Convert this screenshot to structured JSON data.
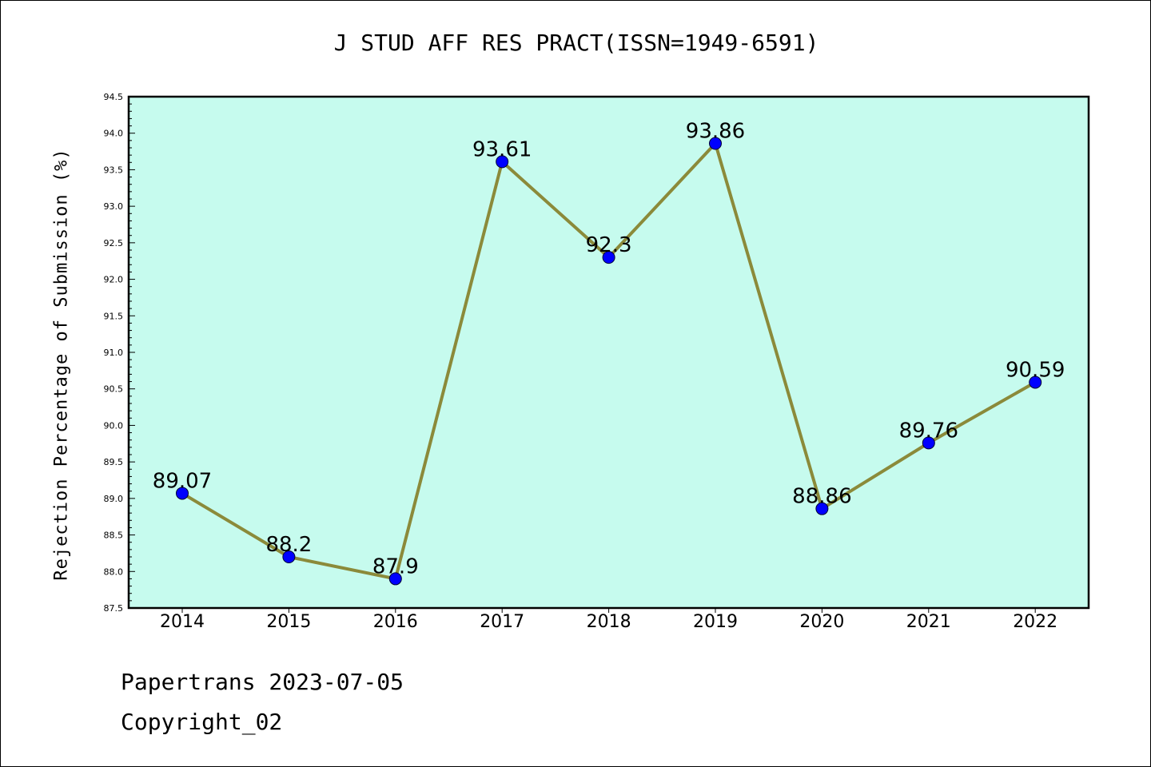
{
  "chart_data": {
    "type": "line",
    "title": "J STUD AFF RES PRACT(ISSN=1949-6591)",
    "xlabel": "",
    "ylabel": "Rejection Percentage of Submission (%)",
    "categories": [
      "2014",
      "2015",
      "2016",
      "2017",
      "2018",
      "2019",
      "2020",
      "2021",
      "2022"
    ],
    "series": [
      {
        "values": [
          89.07,
          88.2,
          87.9,
          93.61,
          92.3,
          93.86,
          88.86,
          89.76,
          90.59
        ],
        "labels": [
          "89.07",
          "88.2",
          "87.9",
          "93.61",
          "92.3",
          "93.86",
          "88.86",
          "89.76",
          "90.59"
        ]
      }
    ],
    "ylim": [
      87.5,
      94.5
    ],
    "yticks": [
      "87.5",
      "88.0",
      "88.5",
      "89.0",
      "89.5",
      "90.0",
      "90.5",
      "91.0",
      "91.5",
      "92.0",
      "92.5",
      "93.0",
      "93.5",
      "94.0",
      "94.5"
    ],
    "grid": false,
    "legend": "none",
    "colors": {
      "plot_background": "#c6fbee",
      "line": "#8b8a3a",
      "marker": "#0000ff"
    }
  },
  "footer": {
    "line1": "Papertrans 2023-07-05",
    "line2": "Copyright_02"
  }
}
